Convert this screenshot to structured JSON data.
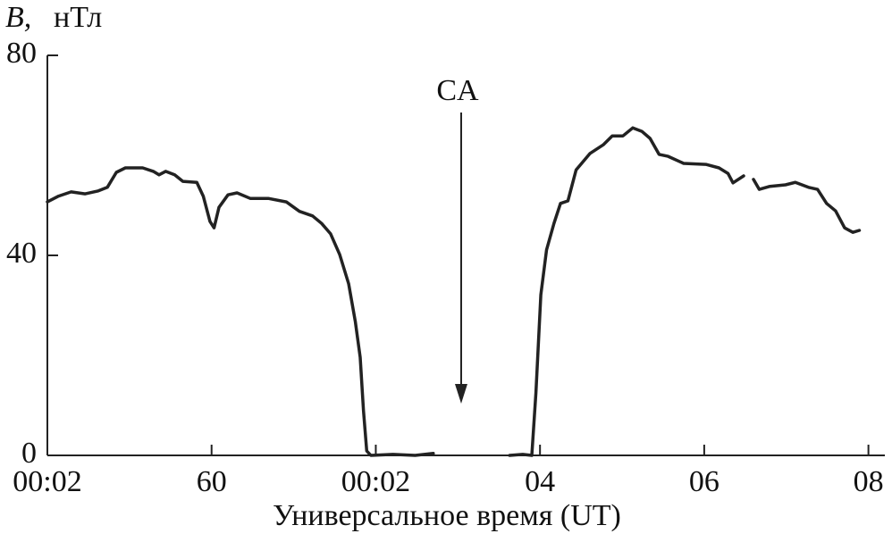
{
  "chart_data": {
    "type": "line",
    "y_symbol": "B,",
    "y_unit": "нТл",
    "xlabel": "Универсальное время (UT)",
    "annotation": {
      "text": "CA",
      "x": 5.04
    },
    "xlim": [
      0,
      10.2
    ],
    "xticks": [
      {
        "value": 0,
        "label": "00:02"
      },
      {
        "value": 2,
        "label": "60"
      },
      {
        "value": 4,
        "label": "00:02"
      },
      {
        "value": 6,
        "label": "04"
      },
      {
        "value": 8,
        "label": "06"
      },
      {
        "value": 10,
        "label": "08"
      }
    ],
    "ylim": [
      0,
      80
    ],
    "yticks": [
      0,
      40,
      80
    ],
    "grid": false,
    "color": "#222222",
    "x": [
      0,
      0.13,
      0.29,
      0.46,
      0.62,
      0.73,
      0.84,
      0.95,
      1.16,
      1.29,
      1.36,
      1.44,
      1.55,
      1.65,
      1.82,
      1.9,
      1.98,
      2.03,
      2.09,
      2.2,
      2.31,
      2.47,
      2.69,
      2.91,
      3.07,
      3.23,
      3.34,
      3.45,
      3.56,
      3.67,
      3.75,
      3.81,
      3.85,
      3.89,
      3.94,
      4.21,
      4.48,
      4.7,
      5.2,
      5.63,
      5.79,
      5.9,
      5.95,
      6.01,
      6.08,
      6.17,
      6.25,
      6.34,
      6.44,
      6.61,
      6.77,
      6.88,
      7.01,
      7.13,
      7.24,
      7.34,
      7.45,
      7.56,
      7.75,
      8.02,
      8.18,
      8.29,
      8.35,
      8.48,
      8.54,
      8.6,
      8.67,
      8.8,
      8.99,
      9.11,
      9.27,
      9.38,
      9.49,
      9.6,
      9.71,
      9.81,
      9.89
    ],
    "values": [
      50.7,
      51.8,
      52.7,
      52.3,
      52.9,
      53.6,
      56.6,
      57.5,
      57.5,
      56.8,
      56.1,
      56.8,
      56.1,
      54.8,
      54.6,
      51.8,
      46.8,
      45.5,
      49.6,
      52.1,
      52.5,
      51.4,
      51.4,
      50.7,
      48.8,
      47.9,
      46.4,
      44.3,
      40.2,
      34.3,
      26.8,
      19.6,
      8.9,
      0.9,
      0,
      0.2,
      0,
      0.4,
      null,
      0,
      0.2,
      0,
      12.5,
      32.1,
      41.1,
      46.4,
      50.4,
      50.9,
      57.1,
      60.4,
      62.1,
      63.9,
      63.9,
      65.5,
      64.8,
      63.4,
      60.2,
      59.8,
      58.4,
      58.2,
      57.5,
      56.4,
      54.5,
      55.9,
      null,
      55.2,
      53.2,
      53.8,
      54.1,
      54.6,
      53.6,
      53.2,
      50.4,
      48.9,
      45.5,
      44.6,
      45.0
    ]
  }
}
